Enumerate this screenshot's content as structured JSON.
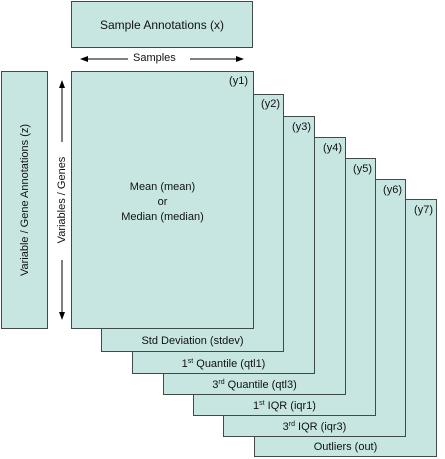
{
  "sample_annotations": "Sample Annotations (x)",
  "samples_label": "Samples",
  "variable_annotations": "Variable / Gene  Annotations (z)",
  "variables_label": "Variables / Genes",
  "main_text": {
    "line1": "Mean (mean)",
    "line2": "or",
    "line3": "Median (median)"
  },
  "layers": [
    {
      "tag": "(y1)",
      "label": ""
    },
    {
      "tag": "(y2)",
      "label_pre": "",
      "sup": "",
      "label_post": "Std Deviation (stdev)"
    },
    {
      "tag": "(y3)",
      "label_pre": "1",
      "sup": "st",
      "label_post": " Quantile (qtl1)"
    },
    {
      "tag": "(y4)",
      "label_pre": "3",
      "sup": "rd",
      "label_post": " Quantile (qtl3)"
    },
    {
      "tag": "(y5)",
      "label_pre": "1",
      "sup": "st",
      "label_post": " IQR (iqr1)"
    },
    {
      "tag": "(y6)",
      "label_pre": "3",
      "sup": "rd",
      "label_post": " IQR (iqr3)"
    },
    {
      "tag": "(y7)",
      "label_pre": "",
      "sup": "",
      "label_post": "Outliers (out)"
    }
  ],
  "colors": {
    "fill": "#c7e6e1",
    "border": "#3f4a49"
  }
}
